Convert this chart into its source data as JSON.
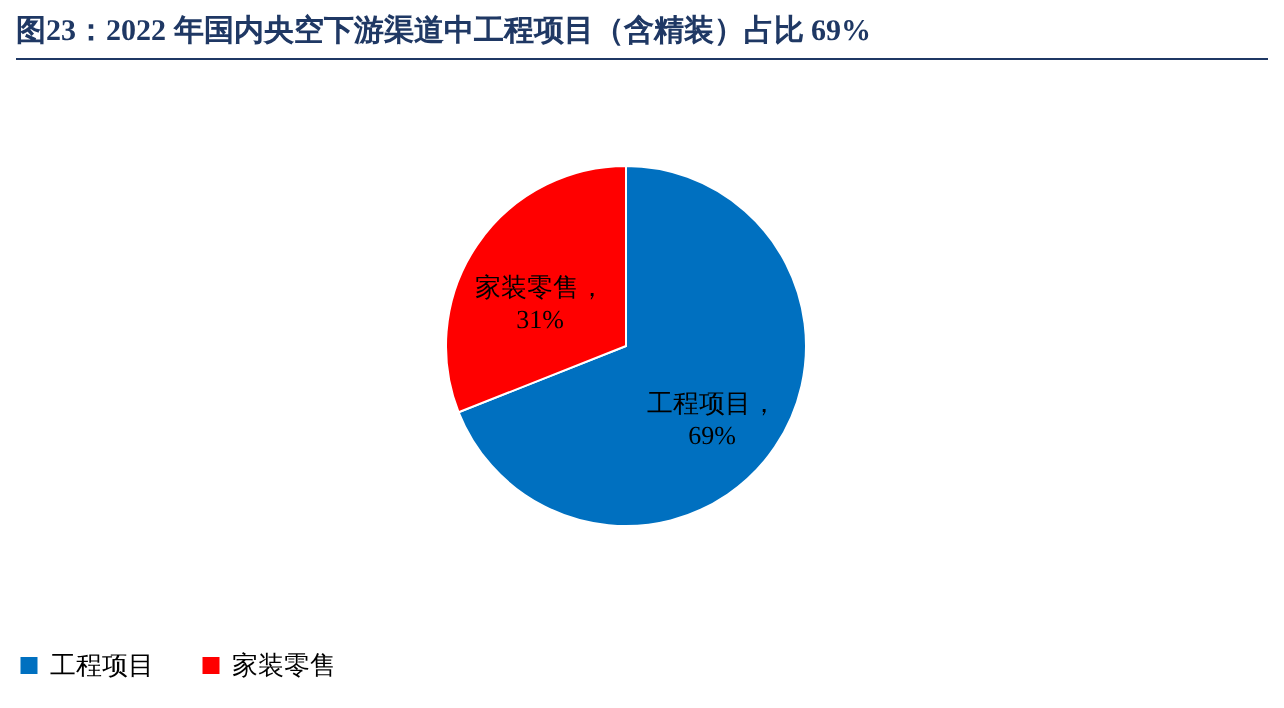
{
  "chart_data": {
    "type": "pie",
    "title": "图23：2022 年国内央空下游渠道中工程项目（含精装）占比 69%",
    "categories": [
      "工程项目",
      "家装零售"
    ],
    "values": [
      69,
      31
    ],
    "colors": [
      "#0070c0",
      "#ff0000"
    ],
    "value_labels": [
      "工程项目，69%",
      "家装零售，31%"
    ],
    "legend": "bottom"
  }
}
